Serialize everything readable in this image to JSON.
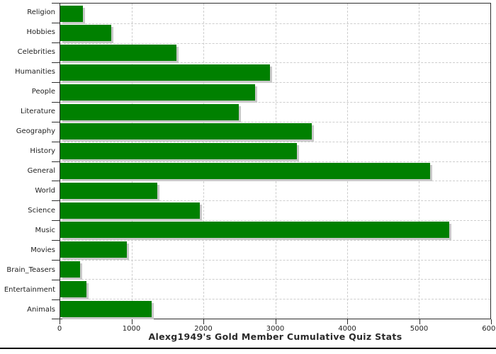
{
  "chart_data": {
    "type": "bar",
    "orientation": "horizontal",
    "title": "Alexg1949's Gold Member Cumulative Quiz Stats",
    "categories": [
      "Religion",
      "Hobbies",
      "Celebrities",
      "Humanities",
      "People",
      "Literature",
      "Geography",
      "History",
      "General",
      "World",
      "Science",
      "Music",
      "Movies",
      "Brain_Teasers",
      "Entertainment",
      "Animals"
    ],
    "values": [
      315,
      710,
      1620,
      2925,
      2715,
      2490,
      3505,
      3300,
      5160,
      1350,
      1950,
      5430,
      925,
      275,
      365,
      1280
    ],
    "xlim": [
      0,
      6000
    ],
    "x_ticks": [
      0,
      1000,
      2000,
      3000,
      4000,
      5000,
      6000
    ],
    "x_tick_labels": [
      "0",
      "1000",
      "2000",
      "3000",
      "4000",
      "5000",
      "6000"
    ],
    "grid": "dashed",
    "legend": "none",
    "colors": {
      "bar": "#008000",
      "bar_shadow": "#c9c9c9",
      "grid": "#cdcdcd",
      "frame": "#2e2e2e",
      "text": "#222222",
      "title": "#2a2a2a",
      "bottom_rule": "#000000",
      "background": "#ffffff"
    }
  }
}
